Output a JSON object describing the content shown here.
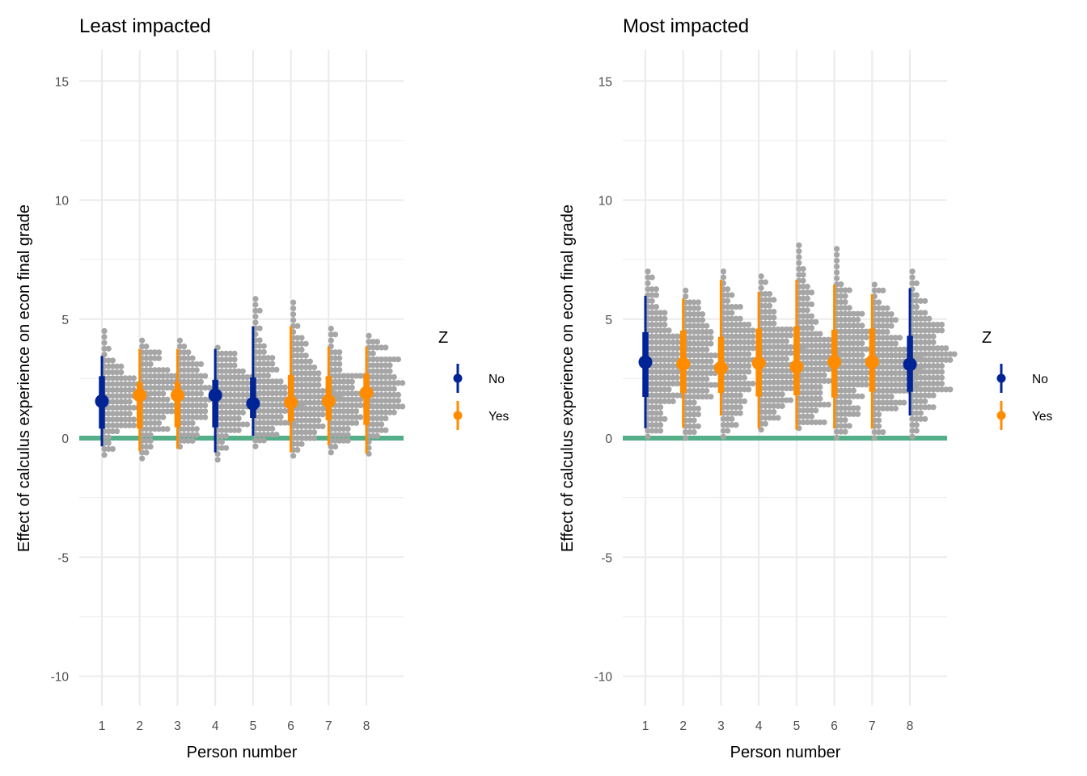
{
  "chart_data": [
    {
      "type": "scatter",
      "subtype": "interval-dotplot",
      "title": "Least impacted",
      "xlabel": "Person number",
      "ylabel": "Effect of calculus experience on econ final grade",
      "categories": [
        "1",
        "2",
        "3",
        "4",
        "5",
        "6",
        "7",
        "8"
      ],
      "yticks": [
        "-10",
        "-5",
        "0",
        "5",
        "10",
        "15"
      ],
      "ylim": [
        -11.2,
        16.1
      ],
      "reference_line": 0,
      "grid": true,
      "legend": {
        "title": "Z",
        "position": "right",
        "entries": [
          "No",
          "Yes"
        ]
      },
      "series": [
        {
          "person": 1,
          "Z": "No",
          "point": 1.55,
          "inner": [
            0.4,
            2.6
          ],
          "outer": [
            -0.35,
            3.45
          ],
          "dots": [
            -0.9,
            4.5
          ]
        },
        {
          "person": 2,
          "Z": "Yes",
          "point": 1.8,
          "inner": [
            0.4,
            2.35
          ],
          "outer": [
            -0.55,
            3.75
          ],
          "dots": [
            -0.9,
            4.1
          ]
        },
        {
          "person": 3,
          "Z": "Yes",
          "point": 1.8,
          "inner": [
            0.45,
            2.35
          ],
          "outer": [
            -0.45,
            3.75
          ],
          "dots": [
            -0.6,
            4.1
          ]
        },
        {
          "person": 4,
          "Z": "No",
          "point": 1.8,
          "inner": [
            0.45,
            2.45
          ],
          "outer": [
            -0.6,
            3.75
          ],
          "dots": [
            -1.05,
            3.8
          ]
        },
        {
          "person": 5,
          "Z": "No",
          "point": 1.45,
          "inner": [
            0.85,
            2.55
          ],
          "outer": [
            0.1,
            4.7
          ],
          "dots": [
            -0.55,
            5.85
          ]
        },
        {
          "person": 6,
          "Z": "Yes",
          "point": 1.5,
          "inner": [
            0.7,
            2.65
          ],
          "outer": [
            -0.6,
            4.7
          ],
          "dots": [
            -0.9,
            5.7
          ]
        },
        {
          "person": 7,
          "Z": "Yes",
          "point": 1.55,
          "inner": [
            0.75,
            2.6
          ],
          "outer": [
            -0.3,
            3.85
          ],
          "dots": [
            -0.75,
            4.6
          ]
        },
        {
          "person": 8,
          "Z": "Yes",
          "point": 1.9,
          "inner": [
            0.55,
            2.7
          ],
          "outer": [
            -0.65,
            3.85
          ],
          "dots": [
            -0.8,
            4.3
          ]
        }
      ]
    },
    {
      "type": "scatter",
      "subtype": "interval-dotplot",
      "title": "Most impacted",
      "xlabel": "Person number",
      "ylabel": "Effect of calculus experience on econ final grade",
      "categories": [
        "1",
        "2",
        "3",
        "4",
        "5",
        "6",
        "7",
        "8"
      ],
      "yticks": [
        "-10",
        "-5",
        "0",
        "5",
        "10",
        "15"
      ],
      "ylim": [
        -11.2,
        16.1
      ],
      "reference_line": 0,
      "grid": true,
      "legend": {
        "title": "Z",
        "position": "right",
        "entries": [
          "No",
          "Yes"
        ]
      },
      "series": [
        {
          "person": 1,
          "Z": "No",
          "point": 3.19,
          "inner": [
            1.73,
            4.45
          ],
          "outer": [
            0.41,
            5.98
          ],
          "dots": [
            -0.05,
            7.0
          ]
        },
        {
          "person": 2,
          "Z": "Yes",
          "point": 3.12,
          "inner": [
            1.9,
            4.52
          ],
          "outer": [
            0.44,
            5.87
          ],
          "dots": [
            -0.1,
            6.2
          ]
        },
        {
          "person": 3,
          "Z": "Yes",
          "point": 2.95,
          "inner": [
            1.9,
            4.25
          ],
          "outer": [
            0.95,
            6.65
          ],
          "dots": [
            -0.1,
            7.0
          ]
        },
        {
          "person": 4,
          "Z": "Yes",
          "point": 3.15,
          "inner": [
            1.75,
            4.6
          ],
          "outer": [
            0.4,
            6.15
          ],
          "dots": [
            0.3,
            6.8
          ]
        },
        {
          "person": 5,
          "Z": "Yes",
          "point": 3.0,
          "inner": [
            1.8,
            4.7
          ],
          "outer": [
            0.35,
            6.65
          ],
          "dots": [
            0.3,
            8.1
          ]
        },
        {
          "person": 6,
          "Z": "Yes",
          "point": 3.2,
          "inner": [
            1.7,
            4.55
          ],
          "outer": [
            0.4,
            6.45
          ],
          "dots": [
            0.0,
            7.95
          ]
        },
        {
          "person": 7,
          "Z": "Yes",
          "point": 3.2,
          "inner": [
            1.95,
            4.6
          ],
          "outer": [
            0.4,
            6.05
          ],
          "dots": [
            0.0,
            6.45
          ]
        },
        {
          "person": 8,
          "Z": "No",
          "point": 3.1,
          "inner": [
            1.95,
            4.3
          ],
          "outer": [
            0.95,
            6.3
          ],
          "dots": [
            -0.1,
            7.0
          ]
        }
      ]
    }
  ],
  "colors": {
    "No": "#002395",
    "Yes": "#FF8C00",
    "dots": "#A6A6A6",
    "reference_line": "#52AF87",
    "grid": "#EBEBEB"
  }
}
